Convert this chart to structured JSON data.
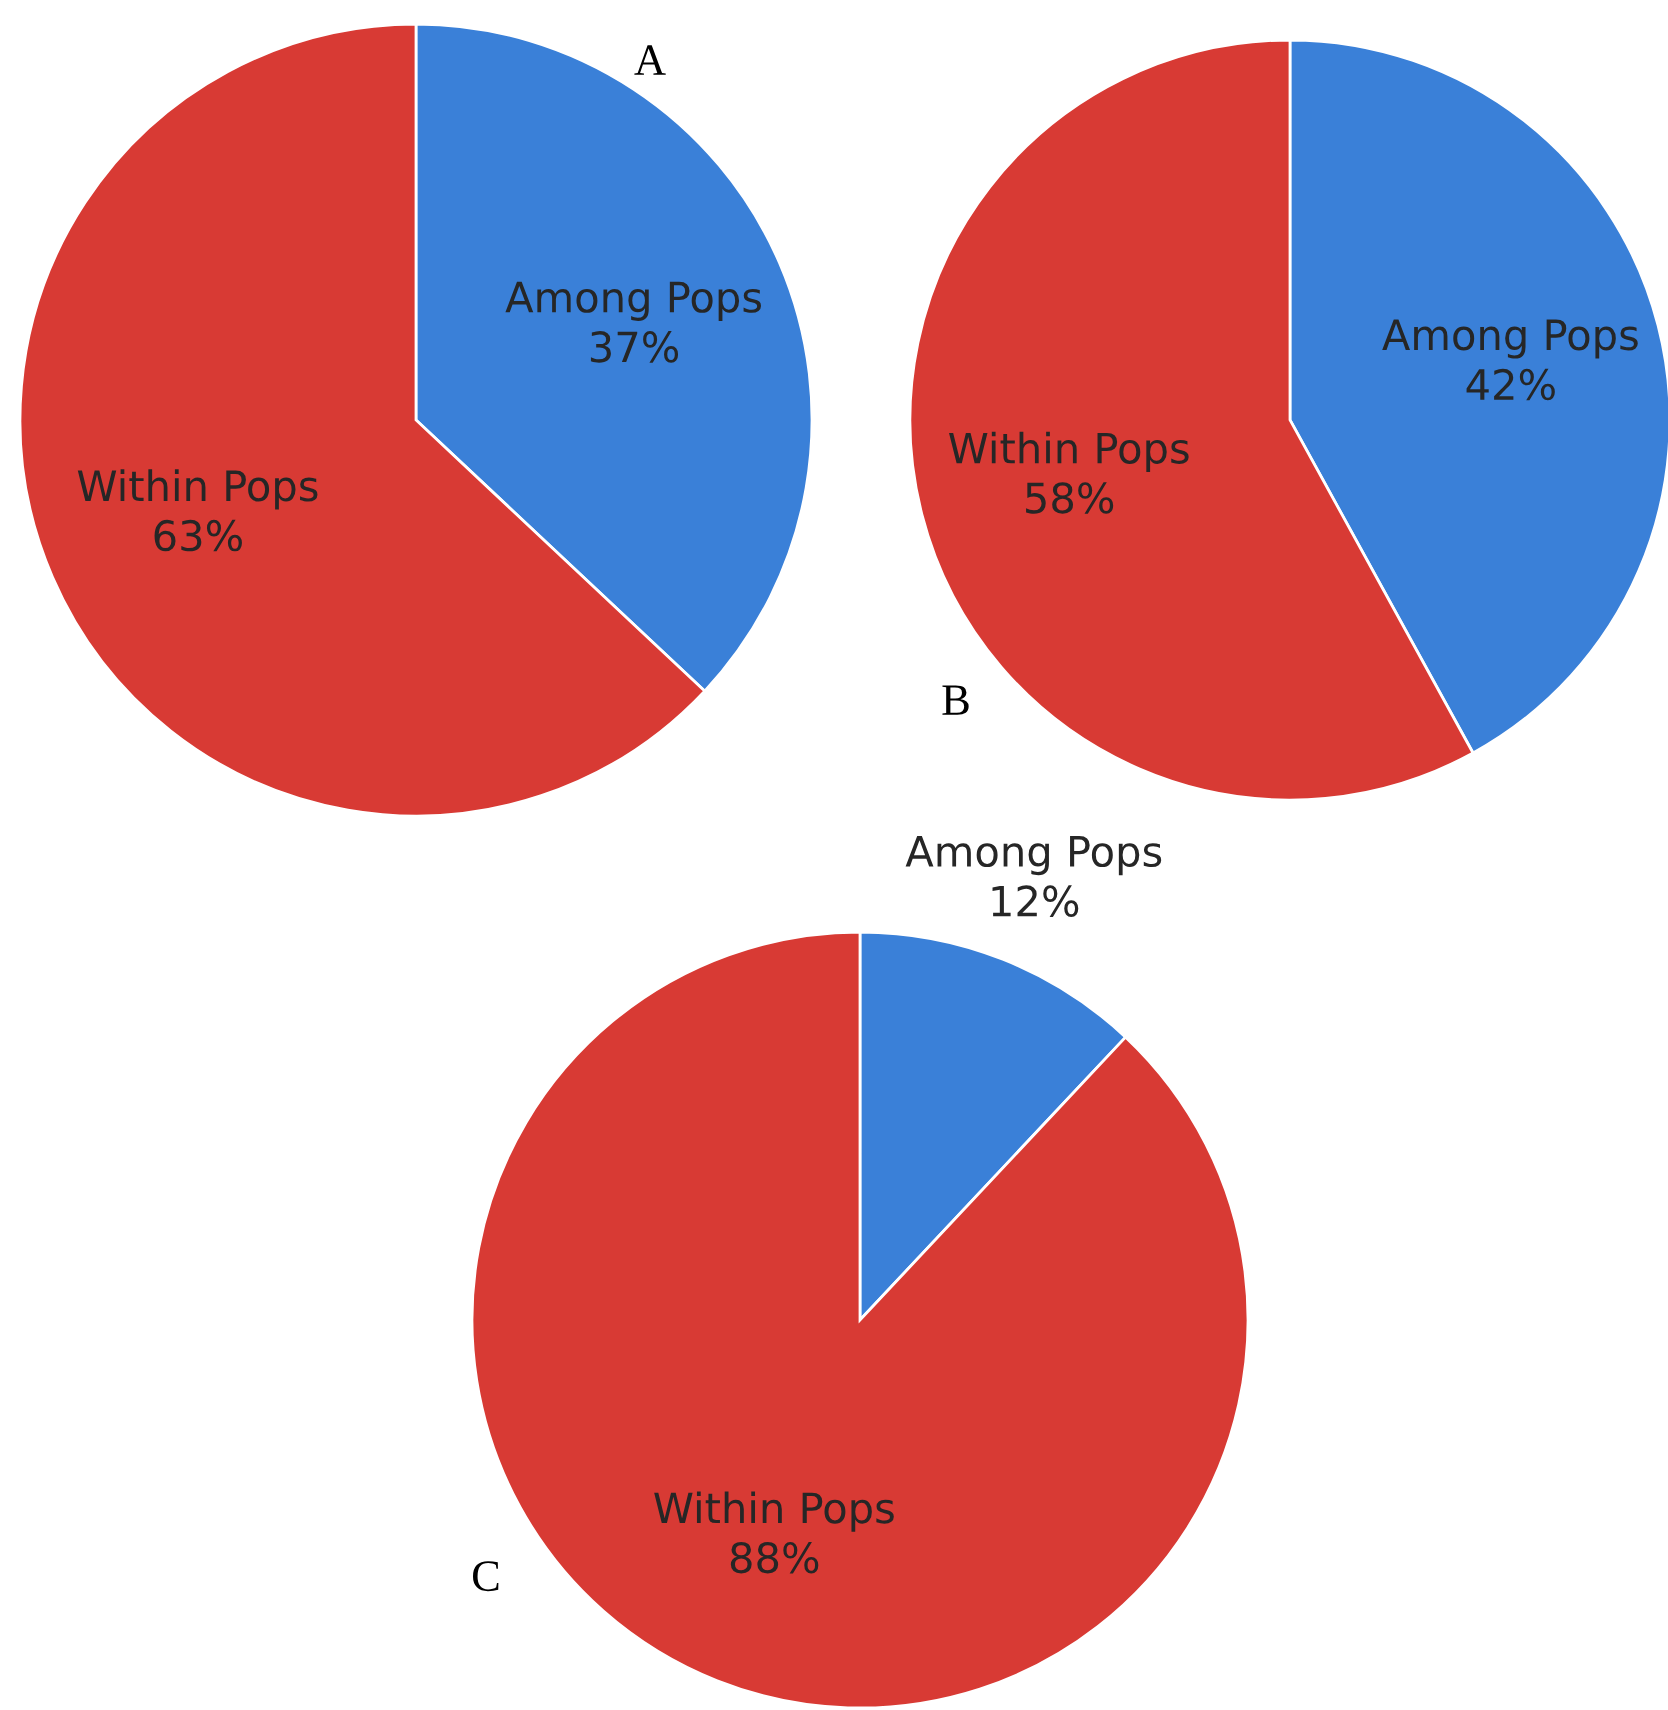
{
  "chart_data": [
    {
      "type": "pie",
      "title": "A",
      "categories": [
        "Among Pops",
        "Within Pops"
      ],
      "values": [
        37,
        63
      ],
      "colors": [
        "#3a80d8",
        "#d83a34"
      ],
      "value_labels": [
        "37%",
        "63%"
      ]
    },
    {
      "type": "pie",
      "title": "B",
      "categories": [
        "Among Pops",
        "Within Pops"
      ],
      "values": [
        42,
        58
      ],
      "colors": [
        "#3a80d8",
        "#d83a34"
      ],
      "value_labels": [
        "42%",
        "58%"
      ]
    },
    {
      "type": "pie",
      "title": "C",
      "categories": [
        "Among Pops",
        "Within Pops"
      ],
      "values": [
        12,
        88
      ],
      "colors": [
        "#3a80d8",
        "#d83a34"
      ],
      "value_labels": [
        "12%",
        "88%"
      ]
    }
  ]
}
